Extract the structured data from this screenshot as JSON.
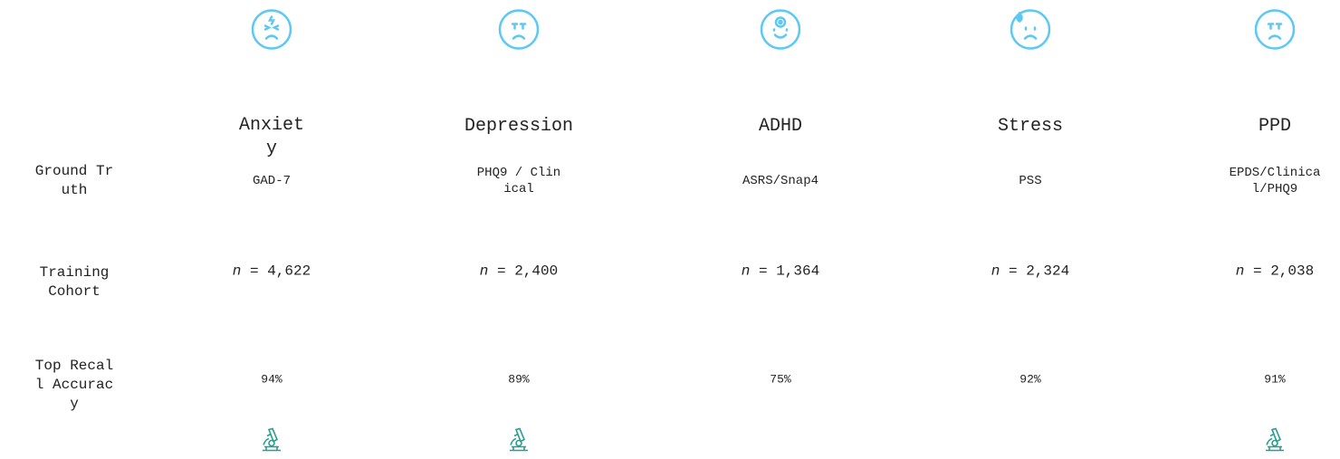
{
  "table": {
    "columns": [
      "Anxiety",
      "Depression",
      "ADHD",
      "Stress",
      "PPD"
    ],
    "row_labels": [
      "Ground Truth",
      "Training Cohort",
      "Top Recall Accuracy"
    ],
    "rows": [
      [
        "GAD-7",
        "PHQ9 / Clinical",
        "ASRS/Snap4",
        "PSS",
        "EPDS/Clinical/PHQ9"
      ],
      [
        [
          "n",
          " = 4,622"
        ],
        [
          "n",
          " = 2,400"
        ],
        [
          "n",
          " = 1,364"
        ],
        [
          "n",
          " = 2,324"
        ],
        [
          "n",
          " = 2,038"
        ]
      ],
      [
        "94%",
        "89%",
        "75%",
        "92%",
        "91%"
      ]
    ]
  }
}
